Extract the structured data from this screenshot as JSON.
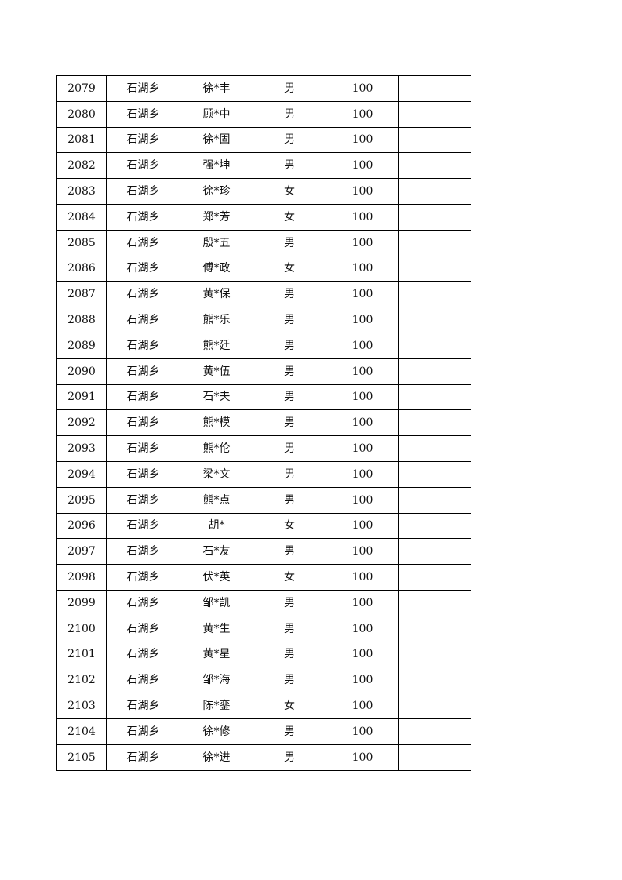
{
  "table": {
    "rows": [
      [
        "2079",
        "石湖乡",
        "徐*丰",
        "男",
        "100",
        ""
      ],
      [
        "2080",
        "石湖乡",
        "顾*中",
        "男",
        "100",
        ""
      ],
      [
        "2081",
        "石湖乡",
        "徐*固",
        "男",
        "100",
        ""
      ],
      [
        "2082",
        "石湖乡",
        "强*坤",
        "男",
        "100",
        ""
      ],
      [
        "2083",
        "石湖乡",
        "徐*珍",
        "女",
        "100",
        ""
      ],
      [
        "2084",
        "石湖乡",
        "郑*芳",
        "女",
        "100",
        ""
      ],
      [
        "2085",
        "石湖乡",
        "殷*五",
        "男",
        "100",
        ""
      ],
      [
        "2086",
        "石湖乡",
        "傅*政",
        "女",
        "100",
        ""
      ],
      [
        "2087",
        "石湖乡",
        "黄*保",
        "男",
        "100",
        ""
      ],
      [
        "2088",
        "石湖乡",
        "熊*乐",
        "男",
        "100",
        ""
      ],
      [
        "2089",
        "石湖乡",
        "熊*廷",
        "男",
        "100",
        ""
      ],
      [
        "2090",
        "石湖乡",
        "黄*伍",
        "男",
        "100",
        ""
      ],
      [
        "2091",
        "石湖乡",
        "石*夫",
        "男",
        "100",
        ""
      ],
      [
        "2092",
        "石湖乡",
        "熊*模",
        "男",
        "100",
        ""
      ],
      [
        "2093",
        "石湖乡",
        "熊*伦",
        "男",
        "100",
        ""
      ],
      [
        "2094",
        "石湖乡",
        "梁*文",
        "男",
        "100",
        ""
      ],
      [
        "2095",
        "石湖乡",
        "熊*点",
        "男",
        "100",
        ""
      ],
      [
        "2096",
        "石湖乡",
        "胡*",
        "女",
        "100",
        ""
      ],
      [
        "2097",
        "石湖乡",
        "石*友",
        "男",
        "100",
        ""
      ],
      [
        "2098",
        "石湖乡",
        "伏*英",
        "女",
        "100",
        ""
      ],
      [
        "2099",
        "石湖乡",
        "邹*凯",
        "男",
        "100",
        ""
      ],
      [
        "2100",
        "石湖乡",
        "黄*生",
        "男",
        "100",
        ""
      ],
      [
        "2101",
        "石湖乡",
        "黄*星",
        "男",
        "100",
        ""
      ],
      [
        "2102",
        "石湖乡",
        "邹*海",
        "男",
        "100",
        ""
      ],
      [
        "2103",
        "石湖乡",
        "陈*銮",
        "女",
        "100",
        ""
      ],
      [
        "2104",
        "石湖乡",
        "徐*修",
        "男",
        "100",
        ""
      ],
      [
        "2105",
        "石湖乡",
        "徐*进",
        "男",
        "100",
        ""
      ]
    ]
  }
}
